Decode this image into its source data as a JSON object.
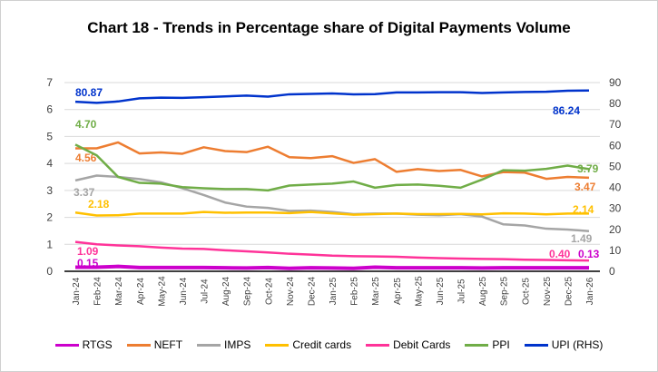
{
  "chart_data": {
    "type": "line",
    "title": "Chart 18 - Trends in Percentage share of Digital Payments Volume",
    "categories": [
      "Jan-24",
      "Feb-24",
      "Mar-24",
      "Apr-24",
      "May-24",
      "Jun-24",
      "Jul-24",
      "Aug-24",
      "Sep-24",
      "Oct-24",
      "Nov-24",
      "Dec-24",
      "Jan-25",
      "Feb-25",
      "Mar-25",
      "Apr-25",
      "May-25",
      "Jun-25",
      "Jul-25",
      "Aug-25",
      "Sep-25",
      "Oct-25",
      "Nov-25",
      "Dec-25",
      "Jan-26"
    ],
    "ylim": [
      0,
      7
    ],
    "yticks": [
      "0",
      "1",
      "2",
      "3",
      "4",
      "5",
      "6",
      "7"
    ],
    "y2lim": [
      0,
      90
    ],
    "y2ticks": [
      "0",
      "10",
      "20",
      "30",
      "40",
      "50",
      "60",
      "70",
      "80",
      "90"
    ],
    "grid": true,
    "legend": "bottom",
    "series": [
      {
        "name": "RTGS",
        "color": "#CC00CC",
        "axis": "left",
        "width": 4,
        "values": [
          0.15,
          0.15,
          0.18,
          0.14,
          0.14,
          0.14,
          0.14,
          0.13,
          0.12,
          0.14,
          0.11,
          0.13,
          0.12,
          0.11,
          0.15,
          0.13,
          0.13,
          0.13,
          0.13,
          0.12,
          0.13,
          0.13,
          0.13,
          0.13,
          0.13
        ],
        "labels": [
          "0.15",
          "0.13"
        ]
      },
      {
        "name": "NEFT",
        "color": "#ED7D31",
        "axis": "left",
        "width": 2.5,
        "values": [
          4.56,
          4.56,
          4.78,
          4.37,
          4.41,
          4.36,
          4.6,
          4.46,
          4.42,
          4.62,
          4.23,
          4.2,
          4.27,
          4.02,
          4.16,
          3.69,
          3.79,
          3.72,
          3.76,
          3.52,
          3.68,
          3.66,
          3.43,
          3.5,
          3.47
        ],
        "labels": [
          "4.56",
          "3.47"
        ]
      },
      {
        "name": "IMPS",
        "color": "#A5A5A5",
        "axis": "left",
        "width": 2.5,
        "values": [
          3.37,
          3.55,
          3.5,
          3.42,
          3.3,
          3.08,
          2.83,
          2.55,
          2.4,
          2.35,
          2.24,
          2.25,
          2.2,
          2.12,
          2.14,
          2.14,
          2.1,
          2.08,
          2.12,
          2.03,
          1.74,
          1.7,
          1.58,
          1.55,
          1.49
        ],
        "labels": [
          "3.37",
          "1.49"
        ]
      },
      {
        "name": "Credit cards",
        "color": "#FFC000",
        "axis": "left",
        "width": 2.5,
        "values": [
          2.18,
          2.07,
          2.08,
          2.14,
          2.14,
          2.14,
          2.2,
          2.17,
          2.18,
          2.18,
          2.16,
          2.2,
          2.15,
          2.1,
          2.12,
          2.14,
          2.12,
          2.12,
          2.13,
          2.11,
          2.15,
          2.14,
          2.11,
          2.14,
          2.14
        ],
        "labels": [
          "2.18",
          "2.14"
        ]
      },
      {
        "name": "Debit Cards",
        "color": "#FF3399",
        "axis": "left",
        "width": 2.5,
        "values": [
          1.09,
          1.0,
          0.96,
          0.93,
          0.88,
          0.84,
          0.83,
          0.78,
          0.74,
          0.7,
          0.65,
          0.62,
          0.58,
          0.56,
          0.55,
          0.54,
          0.51,
          0.49,
          0.47,
          0.46,
          0.45,
          0.43,
          0.42,
          0.41,
          0.4
        ],
        "labels": [
          "1.09",
          "0.40"
        ]
      },
      {
        "name": "PPI",
        "color": "#70AD47",
        "axis": "left",
        "width": 2.5,
        "values": [
          4.7,
          4.3,
          3.5,
          3.28,
          3.25,
          3.12,
          3.08,
          3.05,
          3.05,
          3.0,
          3.18,
          3.22,
          3.25,
          3.33,
          3.1,
          3.2,
          3.22,
          3.17,
          3.1,
          3.4,
          3.75,
          3.73,
          3.8,
          3.92,
          3.79
        ],
        "labels": [
          "4.70",
          "3.79"
        ]
      },
      {
        "name": "UPI (RHS)",
        "color": "#0033CC",
        "axis": "right",
        "width": 2.5,
        "values": [
          80.87,
          80.3,
          81.0,
          82.5,
          82.8,
          82.7,
          83.0,
          83.4,
          83.8,
          83.3,
          84.4,
          84.6,
          84.8,
          84.4,
          84.5,
          85.3,
          85.3,
          85.4,
          85.4,
          85.0,
          85.3,
          85.5,
          85.6,
          86.1,
          86.24
        ],
        "labels": [
          "80.87",
          "86.24"
        ]
      }
    ]
  }
}
